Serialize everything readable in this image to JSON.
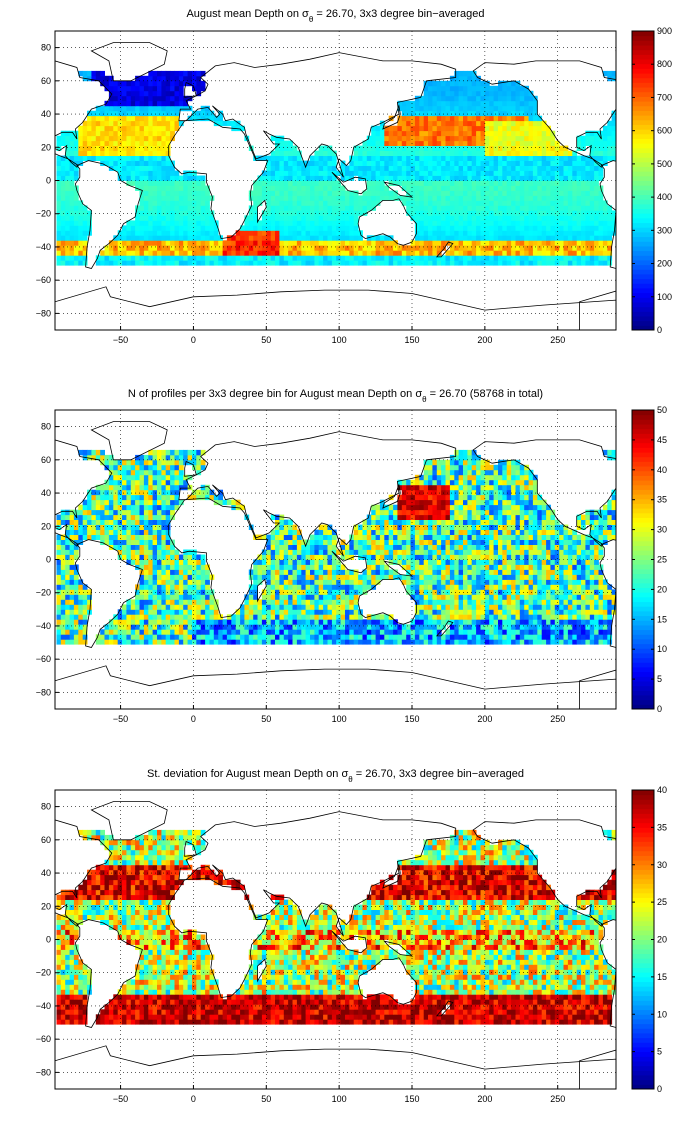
{
  "chart_data": [
    {
      "type": "heatmap",
      "title_prefix": "August mean Depth on ",
      "title_sigma": "σ",
      "title_sigma_sub": "θ",
      "title_suffix": " = 26.70, 3x3 degree bin−averaged",
      "x_ticks": [
        "−50",
        "0",
        "50",
        "100",
        "150",
        "200",
        "250"
      ],
      "x_tick_values": [
        -50,
        0,
        50,
        100,
        150,
        200,
        250
      ],
      "y_ticks": [
        "80",
        "60",
        "40",
        "20",
        "0",
        "−20",
        "−40",
        "−60",
        "−80"
      ],
      "y_tick_values": [
        80,
        60,
        40,
        20,
        0,
        -20,
        -40,
        -60,
        -80
      ],
      "xlim": [
        -95,
        290
      ],
      "ylim": [
        -90,
        90
      ],
      "grid": "dotted",
      "colorbar": {
        "min": 0,
        "max": 900,
        "colormap": "jet",
        "ticks": [
          "900",
          "800",
          "700",
          "600",
          "500",
          "400",
          "300",
          "200",
          "100",
          "0"
        ],
        "tick_values": [
          900,
          800,
          700,
          600,
          500,
          400,
          300,
          200,
          100,
          0
        ]
      }
    },
    {
      "type": "heatmap",
      "title_prefix": "N of profiles per 3x3 degree bin for August mean Depth on ",
      "title_sigma": "σ",
      "title_sigma_sub": "θ",
      "title_suffix": " = 26.70 (58768 in total)",
      "x_ticks": [
        "−50",
        "0",
        "50",
        "100",
        "150",
        "200",
        "250"
      ],
      "x_tick_values": [
        -50,
        0,
        50,
        100,
        150,
        200,
        250
      ],
      "y_ticks": [
        "80",
        "60",
        "40",
        "20",
        "0",
        "−20",
        "−40",
        "−60",
        "−80"
      ],
      "y_tick_values": [
        80,
        60,
        40,
        20,
        0,
        -20,
        -40,
        -60,
        -80
      ],
      "xlim": [
        -95,
        290
      ],
      "ylim": [
        -90,
        90
      ],
      "grid": "dotted",
      "colorbar": {
        "min": 0,
        "max": 50,
        "colormap": "jet",
        "ticks": [
          "50",
          "45",
          "40",
          "35",
          "30",
          "25",
          "20",
          "15",
          "10",
          "5",
          "0"
        ],
        "tick_values": [
          50,
          45,
          40,
          35,
          30,
          25,
          20,
          15,
          10,
          5,
          0
        ]
      }
    },
    {
      "type": "heatmap",
      "title_prefix": "St. deviation for August mean Depth on ",
      "title_sigma": "σ",
      "title_sigma_sub": "θ",
      "title_suffix": " = 26.70, 3x3 degree bin−averaged",
      "x_ticks": [
        "−50",
        "0",
        "50",
        "100",
        "150",
        "200",
        "250"
      ],
      "x_tick_values": [
        -50,
        0,
        50,
        100,
        150,
        200,
        250
      ],
      "y_ticks": [
        "80",
        "60",
        "40",
        "20",
        "0",
        "−20",
        "−40",
        "−60",
        "−80"
      ],
      "y_tick_values": [
        80,
        60,
        40,
        20,
        0,
        -20,
        -40,
        -60,
        -80
      ],
      "xlim": [
        -95,
        290
      ],
      "ylim": [
        -90,
        90
      ],
      "grid": "dotted",
      "colorbar": {
        "min": 0,
        "max": 40,
        "colormap": "jet",
        "ticks": [
          "40",
          "35",
          "30",
          "25",
          "20",
          "15",
          "10",
          "5",
          "0"
        ],
        "tick_values": [
          40,
          35,
          30,
          25,
          20,
          15,
          10,
          5,
          0
        ]
      }
    }
  ]
}
